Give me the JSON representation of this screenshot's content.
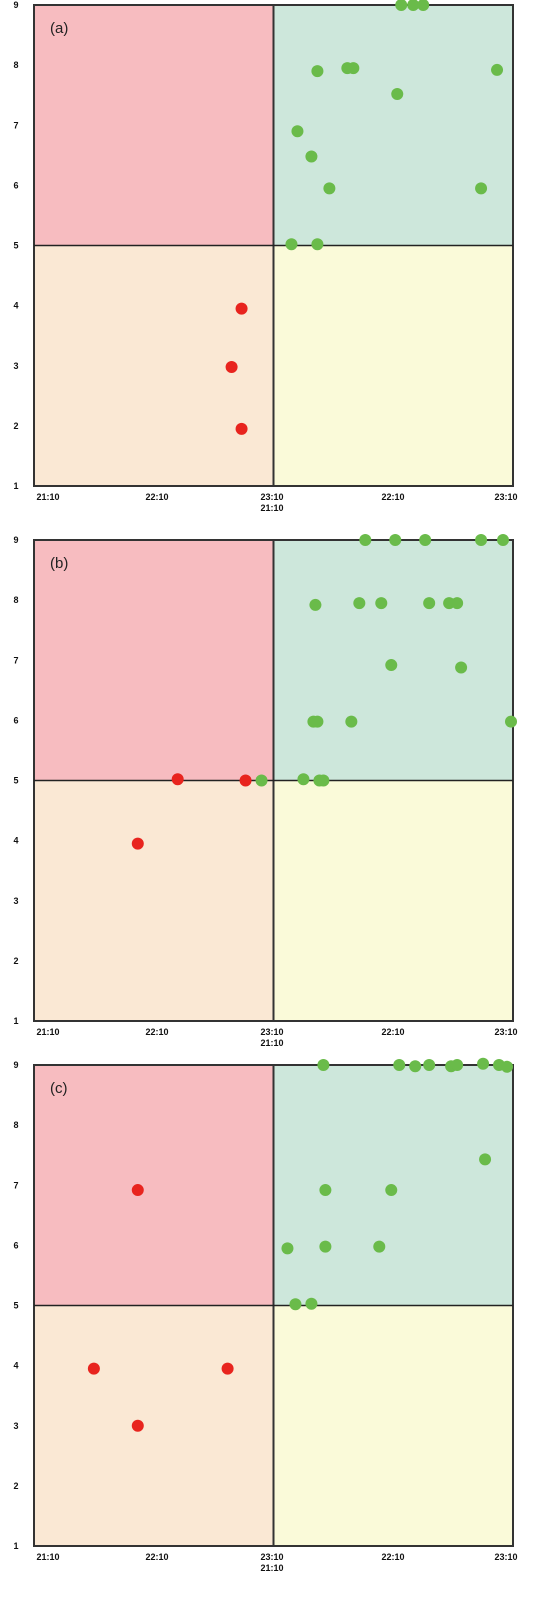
{
  "quadrant_colors": {
    "top_left": "#f7bcc0",
    "top_right": "#cde7db",
    "bottom_left": "#fae8d4",
    "bottom_right": "#fafad9"
  },
  "series_colors": {
    "red": "#e8241e",
    "green": "#6abb4a"
  },
  "chart_data": [
    {
      "type": "scatter",
      "panel_label": "(a)",
      "x_unit": "minutes",
      "ylim": [
        1,
        9
      ],
      "y_ticks": [
        "1",
        "2",
        "3",
        "4",
        "5",
        "6",
        "7",
        "8",
        "9"
      ],
      "x_ticks_left": [
        "21:10",
        "22:10",
        "23:10"
      ],
      "x_ticks_right": [
        "21:10",
        "22:10",
        "23:10"
      ],
      "divider": {
        "x": 120,
        "y": 5
      },
      "series": [
        {
          "color_key": "red",
          "points": [
            [
              104,
              3.95
            ],
            [
              99,
              2.98
            ],
            [
              104,
              1.95
            ]
          ]
        },
        {
          "color_key": "green",
          "points": [
            [
              142,
              7.9
            ],
            [
              157,
              7.95
            ],
            [
              160,
              7.95
            ],
            [
              184,
              9.0
            ],
            [
              190,
              9.0
            ],
            [
              195,
              9.0
            ],
            [
              182,
              7.52
            ],
            [
              232,
              7.92
            ],
            [
              132,
              6.9
            ],
            [
              139,
              6.48
            ],
            [
              148,
              5.95
            ],
            [
              224,
              5.95
            ],
            [
              129,
              5.02
            ],
            [
              142,
              5.02
            ]
          ]
        }
      ]
    },
    {
      "type": "scatter",
      "panel_label": "(b)",
      "x_unit": "minutes",
      "ylim": [
        1,
        9
      ],
      "y_ticks": [
        "1",
        "2",
        "3",
        "4",
        "5",
        "6",
        "7",
        "8",
        "9"
      ],
      "x_ticks_left": [
        "21:10",
        "22:10",
        "23:10"
      ],
      "x_ticks_right": [
        "21:10",
        "22:10",
        "23:10"
      ],
      "divider": {
        "x": 120,
        "y": 5
      },
      "series": [
        {
          "color_key": "red",
          "points": [
            [
              72,
              5.02
            ],
            [
              106,
              5.0
            ],
            [
              52,
              3.95
            ]
          ]
        },
        {
          "color_key": "green",
          "points": [
            [
              114,
              5.0
            ],
            [
              166,
              9.0
            ],
            [
              181,
              9.0
            ],
            [
              196,
              9.0
            ],
            [
              224,
              9.0
            ],
            [
              235,
              9.0
            ],
            [
              141,
              7.92
            ],
            [
              163,
              7.95
            ],
            [
              174,
              7.95
            ],
            [
              198,
              7.95
            ],
            [
              208,
              7.95
            ],
            [
              212,
              7.95
            ],
            [
              179,
              6.92
            ],
            [
              214,
              6.88
            ],
            [
              140,
              5.98
            ],
            [
              142,
              5.98
            ],
            [
              159,
              5.98
            ],
            [
              239,
              5.98
            ],
            [
              135,
              5.02
            ],
            [
              143,
              5.0
            ],
            [
              145,
              5.0
            ]
          ]
        }
      ]
    },
    {
      "type": "scatter",
      "panel_label": "(c)",
      "x_unit": "minutes",
      "ylim": [
        1,
        9
      ],
      "y_ticks": [
        "1",
        "2",
        "3",
        "4",
        "5",
        "6",
        "7",
        "8",
        "9"
      ],
      "x_ticks_left": [
        "21:10",
        "22:10",
        "23:10"
      ],
      "x_ticks_right": [
        "21:10",
        "22:10",
        "23:10"
      ],
      "divider": {
        "x": 120,
        "y": 5
      },
      "series": [
        {
          "color_key": "red",
          "points": [
            [
              52,
              6.92
            ],
            [
              30,
              3.95
            ],
            [
              97,
              3.95
            ],
            [
              52,
              3.0
            ]
          ]
        },
        {
          "color_key": "green",
          "points": [
            [
              145,
              9.0
            ],
            [
              183,
              9.0
            ],
            [
              191,
              8.98
            ],
            [
              198,
              9.0
            ],
            [
              209,
              8.98
            ],
            [
              212,
              9.0
            ],
            [
              225,
              9.02
            ],
            [
              233,
              9.0
            ],
            [
              237,
              8.97
            ],
            [
              226,
              7.43
            ],
            [
              146,
              6.92
            ],
            [
              179,
              6.92
            ],
            [
              127,
              5.95
            ],
            [
              146,
              5.98
            ],
            [
              173,
              5.98
            ],
            [
              131,
              5.02
            ],
            [
              139,
              5.03
            ]
          ]
        }
      ]
    }
  ]
}
